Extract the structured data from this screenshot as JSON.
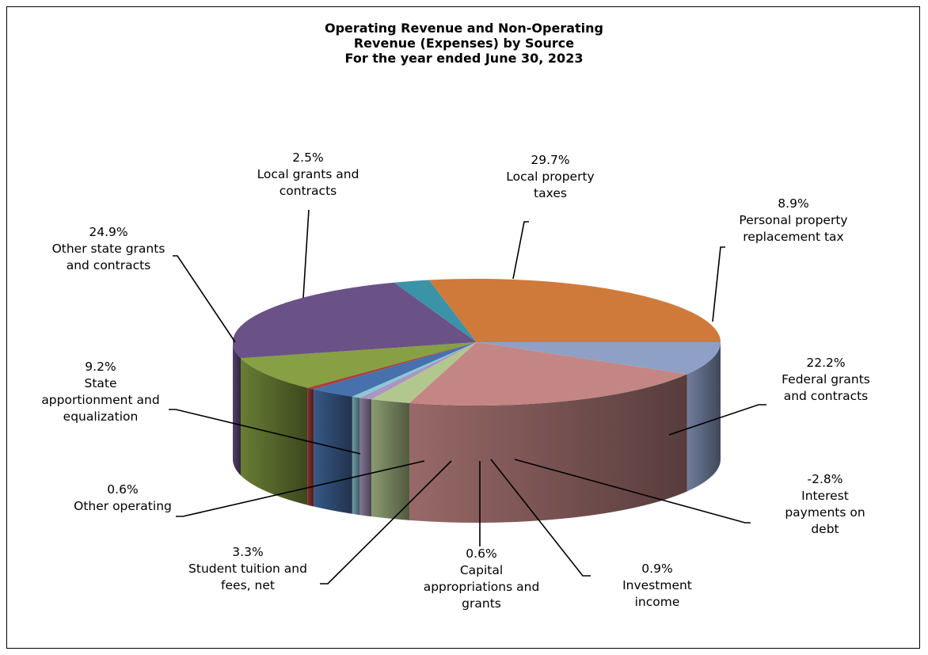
{
  "chart_data": {
    "type": "pie",
    "title_lines": [
      "Operating Revenue and Non-Operating",
      "Revenue (Expenses) by Source",
      "For the year ended June 30, 2023"
    ],
    "slices": [
      {
        "name": "Personal property replacement tax",
        "percent_label": "8.9%",
        "value": 8.9,
        "color": "#8FA0C7",
        "label_lines": [
          "8.9%",
          "Personal property",
          "replacement tax"
        ]
      },
      {
        "name": "Federal grants and contracts",
        "percent_label": "22.2%",
        "value": 22.2,
        "color": "#C38685",
        "label_lines": [
          "22.2%",
          "Federal grants",
          "and contracts"
        ]
      },
      {
        "name": "Interest payments on debt",
        "percent_label": "-2.8%",
        "value": 2.8,
        "color": "#B1C78E",
        "label_lines": [
          "-2.8%",
          "Interest",
          "payments on",
          "debt"
        ]
      },
      {
        "name": "Investment income",
        "percent_label": "0.9%",
        "value": 0.9,
        "color": "#A897C0",
        "label_lines": [
          "0.9%",
          "Investment",
          "income"
        ]
      },
      {
        "name": "Capital appropriations and grants",
        "percent_label": "0.6%",
        "value": 0.6,
        "color": "#8DC7D6",
        "label_lines": [
          "0.6%",
          "Capital",
          "appropriations and",
          "grants"
        ]
      },
      {
        "name": "Student tuition and fees, net",
        "percent_label": "3.3%",
        "value": 3.3,
        "color": "#4771AC",
        "label_lines": [
          "3.3%",
          "Student tuition and",
          "fees, net"
        ]
      },
      {
        "name": "Other operating",
        "percent_label": "0.6%",
        "value": 0.6,
        "color": "#A9403D",
        "label_lines": [
          "0.6%",
          "Other operating"
        ]
      },
      {
        "name": "State apportionment and equalization",
        "percent_label": "9.2%",
        "value": 9.2,
        "color": "#86A043",
        "label_lines": [
          "9.2%",
          "State",
          "apportionment and",
          "equalization"
        ]
      },
      {
        "name": "Other state grants and contracts",
        "percent_label": "24.9%",
        "value": 24.9,
        "color": "#6A5287",
        "label_lines": [
          "24.9%",
          "Other state grants",
          "and contracts"
        ]
      },
      {
        "name": "Local grants and contracts",
        "percent_label": "2.5%",
        "value": 2.5,
        "color": "#3B93A8",
        "label_lines": [
          "2.5%",
          "Local grants and",
          "contracts"
        ]
      },
      {
        "name": "Local property taxes",
        "percent_label": "29.7%",
        "value": 29.7,
        "color": "#CF7A3B",
        "label_lines": [
          "29.7%",
          "Local property",
          "taxes"
        ]
      }
    ],
    "style": "3d-pie",
    "legend": "none"
  }
}
